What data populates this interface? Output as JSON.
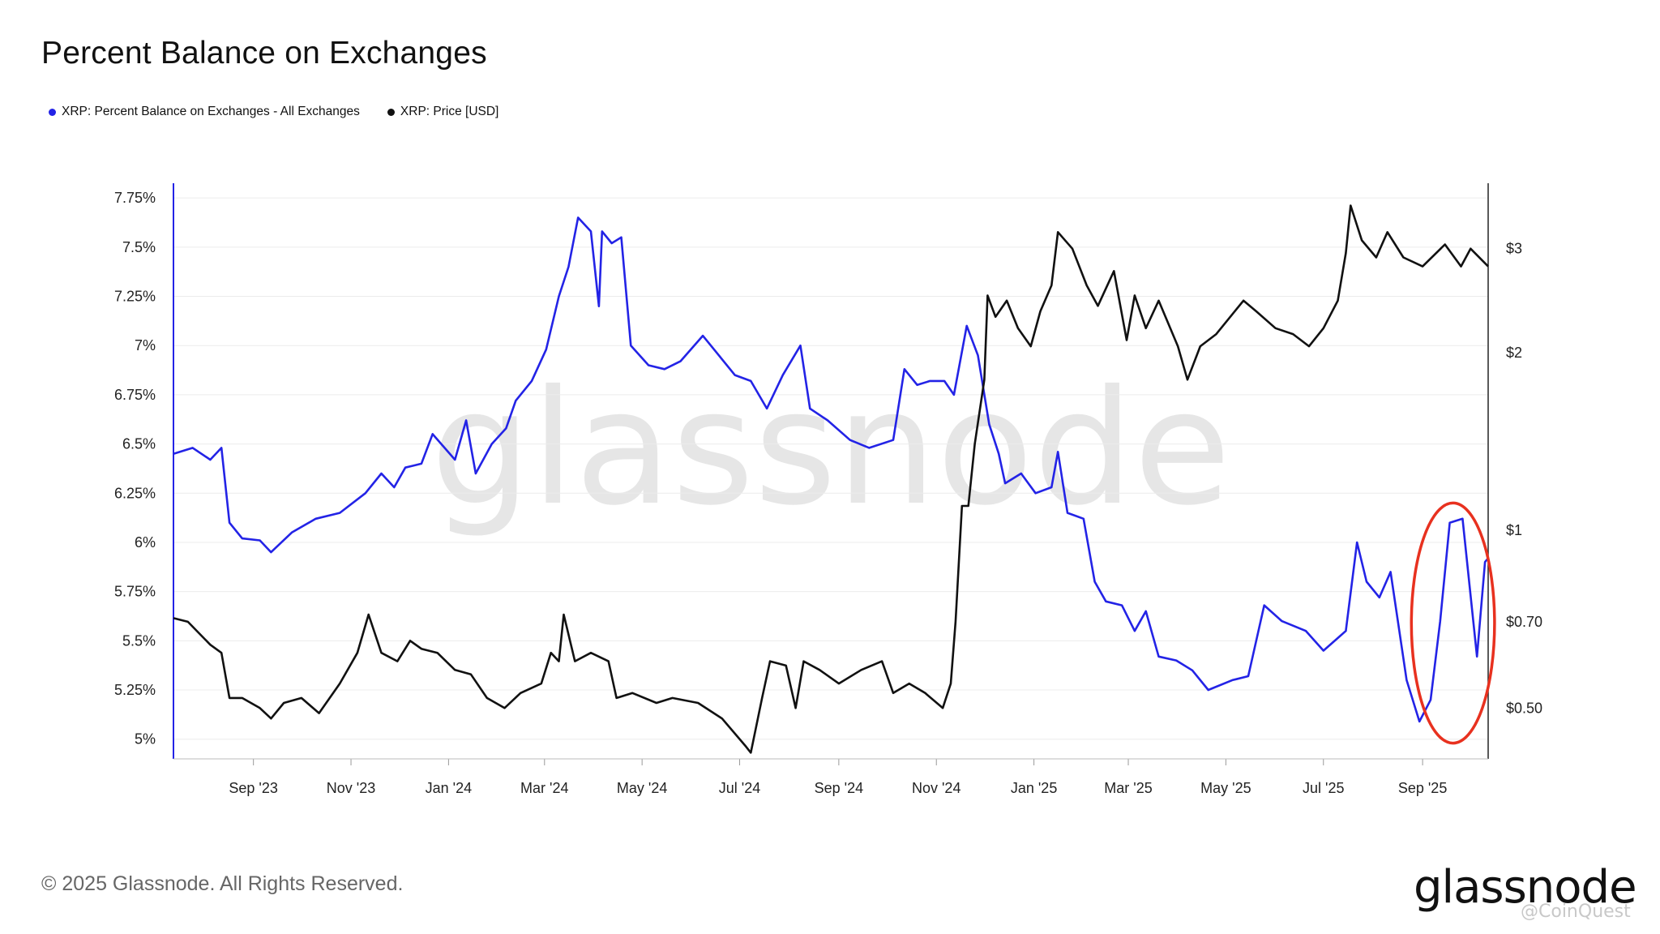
{
  "chart_data": {
    "type": "line",
    "title": "Percent Balance on Exchanges",
    "x_ticks": [
      "Sep '23",
      "Nov '23",
      "Jan '24",
      "Mar '24",
      "May '24",
      "Jul '24",
      "Sep '24",
      "Nov '24",
      "Jan '25",
      "Mar '25",
      "May '25",
      "Jul '25",
      "Sep '25"
    ],
    "x_range": [
      "2023-07-13",
      "2025-10-12"
    ],
    "y_left": {
      "ticks": [
        5,
        5.25,
        5.5,
        5.75,
        6,
        6.25,
        6.5,
        6.75,
        7,
        7.25,
        7.5,
        7.75
      ],
      "tick_labels": [
        "5%",
        "5.25%",
        "5.5%",
        "5.75%",
        "6%",
        "6.25%",
        "6.5%",
        "6.75%",
        "7%",
        "7.25%",
        "7.5%",
        "7.75%"
      ],
      "range": [
        4.9,
        7.8
      ]
    },
    "y_right": {
      "scale": "log",
      "ticks": [
        0.5,
        0.7,
        1,
        2,
        3
      ],
      "tick_labels": [
        "$0.50",
        "$0.70",
        "$1",
        "$2",
        "$3"
      ],
      "range": [
        0.41,
        3.8
      ]
    },
    "grid": true,
    "legend_position": "top-left",
    "series": [
      {
        "name": "XRP: Percent Balance on Exchanges - All Exchanges",
        "color": "#2323e6",
        "axis": "left",
        "points": [
          [
            "2023-07-13",
            6.45
          ],
          [
            "2023-07-25",
            6.48
          ],
          [
            "2023-08-05",
            6.42
          ],
          [
            "2023-08-12",
            6.48
          ],
          [
            "2023-08-17",
            6.1
          ],
          [
            "2023-08-25",
            6.02
          ],
          [
            "2023-09-05",
            6.01
          ],
          [
            "2023-09-12",
            5.95
          ],
          [
            "2023-09-25",
            6.05
          ],
          [
            "2023-10-10",
            6.12
          ],
          [
            "2023-10-25",
            6.15
          ],
          [
            "2023-11-10",
            6.25
          ],
          [
            "2023-11-20",
            6.35
          ],
          [
            "2023-11-28",
            6.28
          ],
          [
            "2023-12-05",
            6.38
          ],
          [
            "2023-12-15",
            6.4
          ],
          [
            "2023-12-22",
            6.55
          ],
          [
            "2024-01-05",
            6.42
          ],
          [
            "2024-01-12",
            6.62
          ],
          [
            "2024-01-18",
            6.35
          ],
          [
            "2024-01-28",
            6.5
          ],
          [
            "2024-02-06",
            6.58
          ],
          [
            "2024-02-12",
            6.72
          ],
          [
            "2024-02-22",
            6.82
          ],
          [
            "2024-03-02",
            6.98
          ],
          [
            "2024-03-10",
            7.25
          ],
          [
            "2024-03-16",
            7.4
          ],
          [
            "2024-03-22",
            7.65
          ],
          [
            "2024-03-30",
            7.58
          ],
          [
            "2024-04-04",
            7.2
          ],
          [
            "2024-04-06",
            7.58
          ],
          [
            "2024-04-12",
            7.52
          ],
          [
            "2024-04-18",
            7.55
          ],
          [
            "2024-04-24",
            7.0
          ],
          [
            "2024-05-05",
            6.9
          ],
          [
            "2024-05-15",
            6.88
          ],
          [
            "2024-05-25",
            6.92
          ],
          [
            "2024-06-08",
            7.05
          ],
          [
            "2024-06-18",
            6.95
          ],
          [
            "2024-06-28",
            6.85
          ],
          [
            "2024-07-08",
            6.82
          ],
          [
            "2024-07-18",
            6.68
          ],
          [
            "2024-07-28",
            6.85
          ],
          [
            "2024-08-08",
            7.0
          ],
          [
            "2024-08-14",
            6.68
          ],
          [
            "2024-08-25",
            6.62
          ],
          [
            "2024-09-08",
            6.52
          ],
          [
            "2024-09-20",
            6.48
          ],
          [
            "2024-10-05",
            6.52
          ],
          [
            "2024-10-12",
            6.88
          ],
          [
            "2024-10-20",
            6.8
          ],
          [
            "2024-10-28",
            6.82
          ],
          [
            "2024-11-06",
            6.82
          ],
          [
            "2024-11-12",
            6.75
          ],
          [
            "2024-11-20",
            7.1
          ],
          [
            "2024-11-27",
            6.95
          ],
          [
            "2024-12-04",
            6.6
          ],
          [
            "2024-12-10",
            6.45
          ],
          [
            "2024-12-14",
            6.3
          ],
          [
            "2024-12-24",
            6.35
          ],
          [
            "2025-01-02",
            6.25
          ],
          [
            "2025-01-12",
            6.28
          ],
          [
            "2025-01-16",
            6.46
          ],
          [
            "2025-01-22",
            6.15
          ],
          [
            "2025-02-01",
            6.12
          ],
          [
            "2025-02-08",
            5.8
          ],
          [
            "2025-02-15",
            5.7
          ],
          [
            "2025-02-25",
            5.68
          ],
          [
            "2025-03-05",
            5.55
          ],
          [
            "2025-03-12",
            5.65
          ],
          [
            "2025-03-20",
            5.42
          ],
          [
            "2025-03-31",
            5.4
          ],
          [
            "2025-04-10",
            5.35
          ],
          [
            "2025-04-20",
            5.25
          ],
          [
            "2025-05-05",
            5.3
          ],
          [
            "2025-05-15",
            5.32
          ],
          [
            "2025-05-25",
            5.68
          ],
          [
            "2025-06-05",
            5.6
          ],
          [
            "2025-06-20",
            5.55
          ],
          [
            "2025-07-01",
            5.45
          ],
          [
            "2025-07-15",
            5.55
          ],
          [
            "2025-07-22",
            6.0
          ],
          [
            "2025-07-28",
            5.8
          ],
          [
            "2025-08-05",
            5.72
          ],
          [
            "2025-08-12",
            5.85
          ],
          [
            "2025-08-22",
            5.3
          ],
          [
            "2025-08-30",
            5.09
          ],
          [
            "2025-09-06",
            5.2
          ],
          [
            "2025-09-12",
            5.6
          ],
          [
            "2025-09-18",
            6.1
          ],
          [
            "2025-09-26",
            6.12
          ],
          [
            "2025-10-05",
            5.42
          ],
          [
            "2025-10-10",
            5.9
          ],
          [
            "2025-10-12",
            5.92
          ]
        ]
      },
      {
        "name": "XRP: Price [USD]",
        "color": "#111111",
        "axis": "right",
        "points": [
          [
            "2023-07-13",
            0.71
          ],
          [
            "2023-07-22",
            0.7
          ],
          [
            "2023-08-05",
            0.64
          ],
          [
            "2023-08-12",
            0.62
          ],
          [
            "2023-08-17",
            0.52
          ],
          [
            "2023-08-25",
            0.52
          ],
          [
            "2023-09-05",
            0.5
          ],
          [
            "2023-09-12",
            0.48
          ],
          [
            "2023-09-20",
            0.51
          ],
          [
            "2023-10-01",
            0.52
          ],
          [
            "2023-10-12",
            0.49
          ],
          [
            "2023-10-25",
            0.55
          ],
          [
            "2023-11-05",
            0.62
          ],
          [
            "2023-11-12",
            0.72
          ],
          [
            "2023-11-20",
            0.62
          ],
          [
            "2023-11-30",
            0.6
          ],
          [
            "2023-12-08",
            0.65
          ],
          [
            "2023-12-15",
            0.63
          ],
          [
            "2023-12-25",
            0.62
          ],
          [
            "2024-01-05",
            0.58
          ],
          [
            "2024-01-15",
            0.57
          ],
          [
            "2024-01-25",
            0.52
          ],
          [
            "2024-02-05",
            0.5
          ],
          [
            "2024-02-15",
            0.53
          ],
          [
            "2024-02-28",
            0.55
          ],
          [
            "2024-03-05",
            0.62
          ],
          [
            "2024-03-10",
            0.6
          ],
          [
            "2024-03-13",
            0.72
          ],
          [
            "2024-03-20",
            0.6
          ],
          [
            "2024-03-30",
            0.62
          ],
          [
            "2024-04-10",
            0.6
          ],
          [
            "2024-04-15",
            0.52
          ],
          [
            "2024-04-25",
            0.53
          ],
          [
            "2024-05-10",
            0.51
          ],
          [
            "2024-05-20",
            0.52
          ],
          [
            "2024-06-05",
            0.51
          ],
          [
            "2024-06-20",
            0.48
          ],
          [
            "2024-07-05",
            0.43
          ],
          [
            "2024-07-08",
            0.42
          ],
          [
            "2024-07-15",
            0.52
          ],
          [
            "2024-07-20",
            0.6
          ],
          [
            "2024-07-30",
            0.59
          ],
          [
            "2024-08-05",
            0.5
          ],
          [
            "2024-08-10",
            0.6
          ],
          [
            "2024-08-20",
            0.58
          ],
          [
            "2024-09-01",
            0.55
          ],
          [
            "2024-09-15",
            0.58
          ],
          [
            "2024-09-28",
            0.6
          ],
          [
            "2024-10-05",
            0.53
          ],
          [
            "2024-10-15",
            0.55
          ],
          [
            "2024-10-25",
            0.53
          ],
          [
            "2024-11-05",
            0.5
          ],
          [
            "2024-11-10",
            0.55
          ],
          [
            "2024-11-13",
            0.7
          ],
          [
            "2024-11-17",
            1.1
          ],
          [
            "2024-11-21",
            1.1
          ],
          [
            "2024-11-25",
            1.4
          ],
          [
            "2024-12-01",
            1.8
          ],
          [
            "2024-12-03",
            2.5
          ],
          [
            "2024-12-08",
            2.3
          ],
          [
            "2024-12-15",
            2.45
          ],
          [
            "2024-12-22",
            2.2
          ],
          [
            "2024-12-30",
            2.05
          ],
          [
            "2025-01-05",
            2.35
          ],
          [
            "2025-01-12",
            2.6
          ],
          [
            "2025-01-16",
            3.2
          ],
          [
            "2025-01-25",
            3.0
          ],
          [
            "2025-02-03",
            2.6
          ],
          [
            "2025-02-10",
            2.4
          ],
          [
            "2025-02-20",
            2.75
          ],
          [
            "2025-02-28",
            2.1
          ],
          [
            "2025-03-05",
            2.5
          ],
          [
            "2025-03-12",
            2.2
          ],
          [
            "2025-03-20",
            2.45
          ],
          [
            "2025-04-01",
            2.05
          ],
          [
            "2025-04-07",
            1.8
          ],
          [
            "2025-04-15",
            2.05
          ],
          [
            "2025-04-25",
            2.15
          ],
          [
            "2025-05-12",
            2.45
          ],
          [
            "2025-05-20",
            2.35
          ],
          [
            "2025-06-01",
            2.2
          ],
          [
            "2025-06-12",
            2.15
          ],
          [
            "2025-06-22",
            2.05
          ],
          [
            "2025-07-01",
            2.2
          ],
          [
            "2025-07-10",
            2.45
          ],
          [
            "2025-07-15",
            2.95
          ],
          [
            "2025-07-18",
            3.55
          ],
          [
            "2025-07-25",
            3.1
          ],
          [
            "2025-08-03",
            2.9
          ],
          [
            "2025-08-10",
            3.2
          ],
          [
            "2025-08-20",
            2.9
          ],
          [
            "2025-09-01",
            2.8
          ],
          [
            "2025-09-15",
            3.05
          ],
          [
            "2025-09-25",
            2.8
          ],
          [
            "2025-10-01",
            3.0
          ],
          [
            "2025-10-12",
            2.8
          ]
        ]
      }
    ],
    "annotations": [
      {
        "type": "ellipse",
        "color": "#e8311f",
        "x_range": [
          "2025-08-25",
          "2025-10-16"
        ],
        "y_range": [
          4.98,
          6.2
        ]
      }
    ],
    "watermark": "glassnode"
  },
  "legend": {
    "series1_label": "XRP: Percent Balance on Exchanges - All Exchanges",
    "series2_label": "XRP: Price [USD]"
  },
  "footer": {
    "copyright": "© 2025 Glassnode. All Rights Reserved.",
    "brand": "glassnode",
    "credit": "@CoinQuest"
  }
}
